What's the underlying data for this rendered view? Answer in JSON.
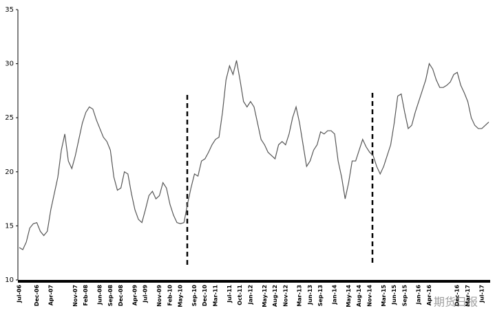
{
  "chart_data": {
    "type": "line",
    "categories": [
      "Jul-06",
      null,
      null,
      null,
      null,
      "Dec-06",
      null,
      null,
      null,
      "Apr-07",
      null,
      null,
      null,
      null,
      null,
      null,
      "Nov-07",
      null,
      null,
      "Feb-08",
      null,
      null,
      null,
      "Jun-08",
      null,
      null,
      "Sep-08",
      null,
      null,
      "Dec-08",
      null,
      null,
      null,
      "Apr-09",
      null,
      null,
      "Jul-09",
      null,
      null,
      null,
      "Nov-09",
      null,
      null,
      "Feb-10",
      null,
      null,
      "May-10",
      null,
      null,
      null,
      "Sep-10",
      null,
      null,
      "Dec-10",
      null,
      null,
      "Mar-11",
      null,
      null,
      null,
      "Jul-11",
      null,
      null,
      "Oct-11",
      null,
      null,
      "Jan-12",
      null,
      null,
      null,
      "May-12",
      null,
      null,
      "Aug-12",
      null,
      null,
      "Nov-12",
      null,
      null,
      null,
      "Mar-13",
      null,
      null,
      "Jun-13",
      null,
      null,
      "Sep-13",
      null,
      null,
      null,
      "Jan-14",
      null,
      null,
      null,
      "May-14",
      null,
      null,
      "Aug-14",
      null,
      null,
      "Nov-14",
      null,
      null,
      null,
      "Mar-15",
      null,
      null,
      "Jun-15",
      null,
      null,
      "Sep-15",
      null,
      null,
      null,
      "Jan-16",
      null,
      null,
      "Apr-16",
      null,
      null,
      null,
      null,
      null,
      null,
      null,
      "Dec-16",
      null,
      null,
      "Mar-17",
      null,
      null,
      null,
      "Jul-17",
      null,
      null
    ],
    "series": [
      {
        "color": "#555555",
        "values": [
          13.0,
          12.8,
          13.5,
          14.8,
          15.2,
          15.3,
          14.5,
          14.1,
          14.5,
          16.5,
          18.0,
          19.5,
          22.0,
          23.5,
          21.0,
          20.3,
          21.5,
          23.0,
          24.5,
          25.5,
          26.0,
          25.8,
          24.8,
          24.0,
          23.2,
          22.8,
          22.0,
          19.5,
          18.3,
          18.5,
          20.0,
          19.8,
          18.0,
          16.5,
          15.6,
          15.3,
          16.5,
          17.8,
          18.2,
          17.5,
          17.8,
          19.0,
          18.5,
          17.0,
          16.0,
          15.3,
          15.2,
          15.3,
          17.0,
          18.5,
          19.8,
          19.6,
          21.0,
          21.2,
          21.8,
          22.5,
          23.0,
          23.2,
          25.5,
          28.5,
          29.8,
          29.0,
          30.3,
          28.5,
          26.5,
          26.0,
          26.5,
          26.0,
          24.5,
          23.0,
          22.5,
          21.8,
          21.5,
          21.2,
          22.5,
          22.8,
          22.5,
          23.5,
          25.0,
          26.0,
          24.5,
          22.5,
          20.5,
          21.0,
          22.0,
          22.5,
          23.7,
          23.5,
          23.8,
          23.8,
          23.5,
          21.0,
          19.5,
          17.5,
          19.0,
          21.0,
          21.0,
          22.0,
          23.0,
          22.3,
          21.8,
          21.5,
          20.5,
          19.8,
          20.5,
          21.5,
          22.5,
          24.5,
          27.0,
          27.2,
          25.5,
          24.0,
          24.3,
          25.5,
          26.5,
          27.5,
          28.5,
          30.0,
          29.5,
          28.5,
          27.8,
          27.8,
          28.0,
          28.3,
          29.0,
          29.2,
          28.0,
          27.3,
          26.5,
          25.0,
          24.3,
          24.0,
          24.0,
          24.3,
          24.6
        ]
      }
    ],
    "ylim": [
      10,
      35
    ],
    "yticks": [
      10,
      15,
      20,
      25,
      30,
      35
    ],
    "watermark": "期货日报"
  }
}
